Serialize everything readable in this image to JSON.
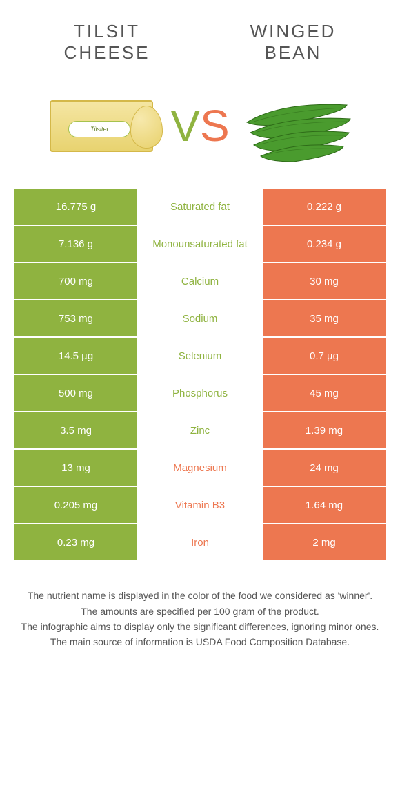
{
  "colors": {
    "left": "#8fb340",
    "right": "#ed7750",
    "text_grey": "#555555",
    "bg": "#ffffff"
  },
  "header": {
    "left_title": "TILSIT\nCHEESE",
    "right_title": "WINGED\nBEAN"
  },
  "vs": {
    "v": "V",
    "s": "S"
  },
  "table": {
    "rows": [
      {
        "left": "16.775 g",
        "label": "Saturated fat",
        "right": "0.222 g",
        "winner": "left"
      },
      {
        "left": "7.136 g",
        "label": "Monounsaturated fat",
        "right": "0.234 g",
        "winner": "left"
      },
      {
        "left": "700 mg",
        "label": "Calcium",
        "right": "30 mg",
        "winner": "left"
      },
      {
        "left": "753 mg",
        "label": "Sodium",
        "right": "35 mg",
        "winner": "left"
      },
      {
        "left": "14.5 µg",
        "label": "Selenium",
        "right": "0.7 µg",
        "winner": "left"
      },
      {
        "left": "500 mg",
        "label": "Phosphorus",
        "right": "45 mg",
        "winner": "left"
      },
      {
        "left": "3.5 mg",
        "label": "Zinc",
        "right": "1.39 mg",
        "winner": "left"
      },
      {
        "left": "13 mg",
        "label": "Magnesium",
        "right": "24 mg",
        "winner": "right"
      },
      {
        "left": "0.205 mg",
        "label": "Vitamin B3",
        "right": "1.64 mg",
        "winner": "right"
      },
      {
        "left": "0.23 mg",
        "label": "Iron",
        "right": "2 mg",
        "winner": "right"
      }
    ]
  },
  "footnotes": [
    "The nutrient name is displayed in the color of the food we considered as 'winner'.",
    "The amounts are specified per 100 gram of the product.",
    "The infographic aims to display only the significant differences, ignoring minor ones.",
    "The main source of information is USDA Food Composition Database."
  ],
  "images": {
    "cheese_label": "Tilsiter"
  }
}
